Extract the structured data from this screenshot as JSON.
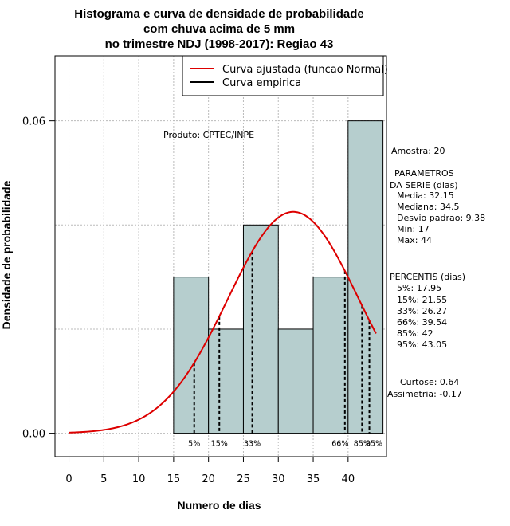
{
  "chart_data": {
    "type": "bar",
    "title_lines": [
      "Histograma e curva de densidade de probabilidade",
      "com chuva acima de 5 mm",
      "no trimestre NDJ (1998-2017): Regiao 43"
    ],
    "xlabel": "Numero de dias",
    "ylabel": "Densidade de probabilidade",
    "xlim": [
      -2,
      45.5
    ],
    "ylim": [
      -0.0045,
      0.0725
    ],
    "xticks": [
      0,
      5,
      10,
      15,
      20,
      25,
      30,
      35,
      40
    ],
    "yticks": [
      0.0,
      0.06
    ],
    "ytick_labels": [
      "0.00",
      "0.06"
    ],
    "grid": true,
    "bins": [
      {
        "start": 15,
        "end": 20,
        "density": 0.03
      },
      {
        "start": 20,
        "end": 25,
        "density": 0.02
      },
      {
        "start": 25,
        "end": 30,
        "density": 0.04
      },
      {
        "start": 30,
        "end": 35,
        "density": 0.02
      },
      {
        "start": 35,
        "end": 40,
        "density": 0.03
      },
      {
        "start": 40,
        "end": 45,
        "density": 0.06
      }
    ],
    "bar_color": "#b6cece",
    "normal_curve": {
      "mean": 32.15,
      "sd": 9.38,
      "x_from": 0,
      "x_to": 44,
      "color": "#dd0000"
    },
    "percentiles": [
      {
        "label": "5%",
        "value": 17.95
      },
      {
        "label": "15%",
        "value": 21.55
      },
      {
        "label": "33%",
        "value": 26.27
      },
      {
        "label": "66%",
        "value": 39.54
      },
      {
        "label": "85%",
        "value": 42
      },
      {
        "label": "95%",
        "value": 43.05
      }
    ],
    "legend": {
      "position": "top-right",
      "entries": [
        {
          "label": "Curva ajustada (funcao Normal)",
          "color": "#dd0000"
        },
        {
          "label": "Curva empirica",
          "color": "#000000"
        }
      ]
    },
    "annotations": {
      "product": "Produto: CPTEC/INPE",
      "sample": "Amostra: 20",
      "params_title_1": "PARAMETROS",
      "params_title_2": "DA SERIE (dias)",
      "params": [
        "Media: 32.15",
        "Mediana: 34.5",
        "Desvio padrao: 9.38",
        "Min: 17",
        "Max: 44"
      ],
      "percentis_title": "PERCENTIS (dias)",
      "percentis": [
        "5%: 17.95",
        "15%: 21.55",
        "33%: 26.27",
        "66%: 39.54",
        "85%: 42",
        "95%: 43.05"
      ],
      "curtose": "Curtose: 0.64",
      "assimetria": "Assimetria: -0.17"
    }
  }
}
